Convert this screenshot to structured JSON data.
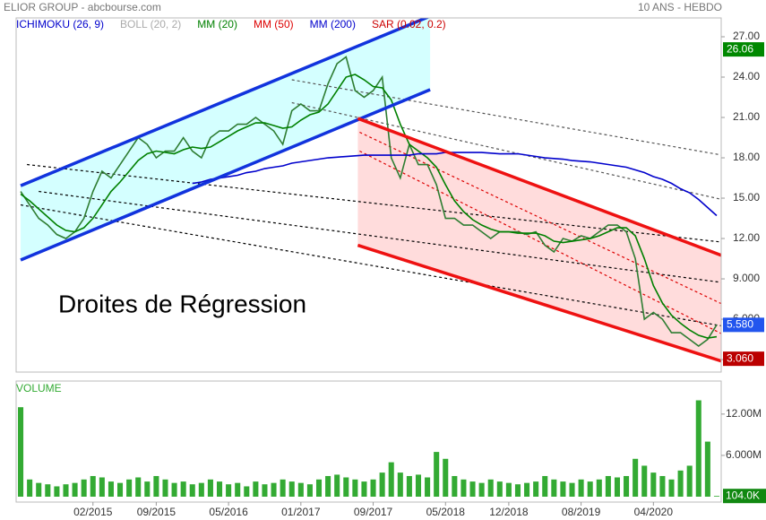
{
  "header": {
    "title": "ELIOR GROUP - abcbourse.com",
    "period": "10 ANS - HEBDO"
  },
  "indicators": [
    {
      "name": "ICHIMOKU (26, 9)",
      "color": "#0000cc"
    },
    {
      "name": "BOLL (20, 2)",
      "color": "#aaaaaa"
    },
    {
      "name": "MM (20)",
      "color": "#008000"
    },
    {
      "name": "MM (50)",
      "color": "#dd0000"
    },
    {
      "name": "MM (200)",
      "color": "#0000cc"
    },
    {
      "name": "SAR (0.02, 0.2)",
      "color": "#cc0000"
    }
  ],
  "annotation": "Droites de Régression",
  "chart_data": [
    {
      "type": "line",
      "categories": [
        null,
        null,
        null,
        null,
        null,
        null,
        null,
        null,
        "02/2015",
        null,
        null,
        null,
        null,
        null,
        null,
        "09/2015",
        null,
        null,
        null,
        null,
        null,
        null,
        null,
        "05/2016",
        null,
        null,
        null,
        null,
        null,
        null,
        null,
        "01/2017",
        null,
        null,
        null,
        null,
        null,
        null,
        null,
        "09/2017",
        null,
        null,
        null,
        null,
        null,
        null,
        null,
        "05/2018",
        null,
        null,
        null,
        null,
        null,
        null,
        "12/2018",
        null,
        null,
        null,
        null,
        null,
        null,
        null,
        "08/2019",
        null,
        null,
        null,
        null,
        null,
        null,
        null,
        "04/2020",
        null,
        null,
        null,
        null,
        null,
        null,
        null
      ],
      "series": [
        {
          "color": "#2e7d32",
          "values": [
            15.5,
            14.5,
            13.5,
            13,
            12.3,
            12,
            12.5,
            13.5,
            15.5,
            17,
            16.5,
            17.5,
            18.5,
            19.5,
            19,
            18,
            18.5,
            18.5,
            19.5,
            18.5,
            18,
            19.5,
            20,
            20,
            20.5,
            20.5,
            21,
            20.5,
            20,
            19,
            21.5,
            22,
            21.5,
            21.5,
            23.5,
            25,
            25.5,
            23,
            22.5,
            23,
            24,
            18,
            16.5,
            19,
            17.5,
            17.5,
            16,
            13.5,
            13.5,
            13,
            13,
            12.5,
            12,
            12.5,
            12.5,
            12.5,
            12.3,
            12.5,
            11.5,
            11,
            12,
            11.8,
            12.2,
            12,
            12.5,
            13,
            13,
            12.5,
            10.5,
            6,
            6.5,
            6,
            5,
            5,
            4.5,
            4,
            4.5,
            5.58
          ]
        },
        {
          "color": "#008000",
          "values": [
            15.3,
            14.8,
            14.2,
            13.6,
            13,
            12.6,
            12.5,
            12.8,
            13.5,
            14.5,
            15.5,
            16.2,
            17,
            17.8,
            18.3,
            18.5,
            18.4,
            18.3,
            18.6,
            18.8,
            18.7,
            18.8,
            19.2,
            19.6,
            20,
            20.3,
            20.6,
            20.6,
            20.4,
            20.2,
            20.3,
            20.8,
            21.2,
            21.4,
            22,
            23,
            24,
            24.2,
            23.8,
            23.3,
            23.2,
            22.3,
            20.5,
            19,
            18.5,
            18,
            17.3,
            16,
            14.8,
            14,
            13.4,
            13,
            12.7,
            12.5,
            12.5,
            12.4,
            12.4,
            12.4,
            12.2,
            11.8,
            11.7,
            11.8,
            11.9,
            12,
            12.2,
            12.5,
            12.8,
            12.8,
            12.2,
            10.5,
            8.5,
            7.2,
            6.3,
            5.7,
            5.2,
            4.8,
            4.6,
            4.7
          ]
        },
        {
          "color": "#0000cc",
          "values": [
            null,
            null,
            null,
            null,
            null,
            null,
            null,
            null,
            null,
            null,
            null,
            null,
            null,
            null,
            null,
            null,
            null,
            null,
            null,
            16.1,
            16.2,
            16.4,
            16.5,
            16.6,
            16.7,
            16.9,
            17.0,
            17.2,
            17.3,
            17.4,
            17.6,
            17.7,
            17.8,
            17.9,
            18.0,
            18.05,
            18.1,
            18.15,
            18.2,
            18.2,
            18.2,
            18.2,
            18.2,
            18.2,
            18.3,
            18.3,
            18.3,
            18.4,
            18.4,
            18.4,
            18.4,
            18.4,
            18.35,
            18.3,
            18.3,
            18.3,
            18.2,
            18.1,
            18.0,
            17.95,
            17.9,
            17.8,
            17.75,
            17.7,
            17.6,
            17.5,
            17.4,
            17.3,
            17.1,
            16.9,
            16.6,
            16.4,
            16.1,
            15.7,
            15.4,
            14.9,
            14.3,
            13.7
          ]
        }
      ],
      "channels": [
        {
          "color": "#1133dd",
          "fill": "#ccffff",
          "start": 0,
          "end": 45.3,
          "upper": [
            15.93,
            28.53
          ],
          "lower": [
            10.4,
            23.07
          ]
        },
        {
          "color": "#ee1111",
          "fill": "#ffd6d6",
          "start": 37.3,
          "end": 77.6,
          "upper": [
            20.93,
            10.73
          ],
          "lower": [
            11.5,
            2.87
          ]
        }
      ],
      "trend_lines": [
        {
          "color": "#000000",
          "start": 0.7,
          "end": 77.6,
          "values": [
            17.5,
            11.73
          ]
        },
        {
          "color": "#000000",
          "start": 2,
          "end": 77.6,
          "values": [
            15.5,
            8.73
          ]
        },
        {
          "color": "#000000",
          "start": 0,
          "end": 77.6,
          "values": [
            14.5,
            5.5
          ]
        },
        {
          "color": "#dd0000",
          "start": 37.5,
          "end": 77.6,
          "values": [
            19.9,
            7.13
          ]
        },
        {
          "color": "#dd0000",
          "start": 37.5,
          "end": 77.6,
          "values": [
            18.5,
            4.9
          ]
        },
        {
          "color": "#555555",
          "start": 30,
          "end": 77.6,
          "values": [
            23.8,
            18.2
          ]
        },
        {
          "color": "#555555",
          "start": 30,
          "end": 77.6,
          "values": [
            22.1,
            14.9
          ]
        }
      ],
      "price_labels": [
        {
          "value": 26.06,
          "label": "26.06",
          "color": "#008800"
        },
        {
          "value": 5.58,
          "label": "5.580",
          "color": "#2255ee"
        },
        {
          "value": 3.06,
          "label": "3.060",
          "color": "#bb0000"
        }
      ],
      "ylim": [
        2.07,
        28.4
      ],
      "yticks": [
        {
          "value": 27,
          "label": "27.00"
        },
        {
          "value": 24,
          "label": "24.00"
        },
        {
          "value": 21,
          "label": "21.00"
        },
        {
          "value": 18,
          "label": "18.00"
        },
        {
          "value": 15,
          "label": "15.00"
        },
        {
          "value": 12,
          "label": "12.00"
        },
        {
          "value": 9,
          "label": "9.000"
        },
        {
          "value": 6,
          "label": "6.000"
        },
        {
          "value": 3,
          "label": "3.000"
        }
      ]
    },
    {
      "type": "bar",
      "title": "VOLUME",
      "color": "#33aa33",
      "values": [
        13,
        2.5,
        2,
        1.8,
        1.5,
        1.8,
        2,
        2.5,
        3,
        2.8,
        2.2,
        2,
        2.5,
        2.8,
        2.2,
        3,
        2.5,
        2,
        2.2,
        1.8,
        2,
        2.5,
        2.2,
        1.8,
        2,
        1.5,
        2.2,
        1.8,
        2,
        2.5,
        2.2,
        2,
        1.8,
        2.5,
        3,
        3.2,
        2.8,
        2.5,
        2.2,
        2.5,
        3.5,
        5,
        3.5,
        3,
        3.2,
        2.8,
        6.5,
        5.5,
        3,
        2.5,
        2.2,
        2,
        2.5,
        2.2,
        2,
        1.8,
        2,
        2.2,
        3,
        2.5,
        2.2,
        2,
        2.5,
        2.2,
        2.5,
        3,
        2.8,
        3,
        5.5,
        4.5,
        3.5,
        3,
        2.5,
        3.8,
        4.5,
        14,
        8,
        0.104
      ],
      "value_labels": [
        null,
        null,
        null,
        null,
        null,
        null,
        null,
        null,
        null,
        null,
        null,
        null,
        null,
        null,
        null,
        null,
        null,
        null,
        null,
        null,
        null,
        null,
        null,
        null,
        null,
        null,
        null,
        null,
        null,
        null,
        null,
        null,
        null,
        null,
        null,
        null,
        null,
        null,
        null,
        null,
        null,
        null,
        null,
        null,
        null,
        null,
        null,
        null,
        null,
        null,
        null,
        null,
        null,
        null,
        null,
        null,
        null,
        null,
        null,
        null,
        null,
        null,
        null,
        null,
        null,
        null,
        null,
        null,
        null,
        null,
        null,
        null,
        null,
        null,
        null,
        null,
        null,
        "104.0K"
      ],
      "ylim": [
        0,
        16.8
      ],
      "yticks": [
        {
          "value": 12,
          "label": "12.00M"
        },
        {
          "value": 6,
          "label": "6.000M"
        }
      ]
    }
  ]
}
